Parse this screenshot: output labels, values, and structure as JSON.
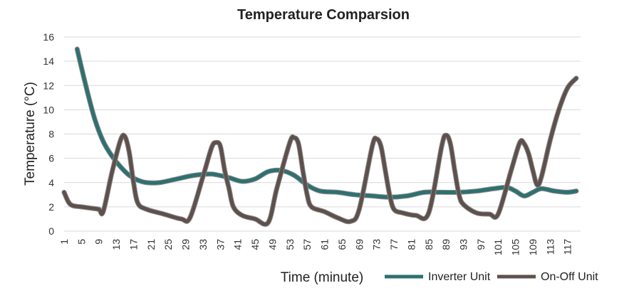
{
  "chart_data": {
    "type": "line",
    "title": "Temperature Comparsion",
    "xlabel": "Time (minute)",
    "ylabel": "Temperature (°C)",
    "ylim": [
      0,
      16
    ],
    "xlim": [
      1,
      120
    ],
    "yticks": [
      0,
      2,
      4,
      6,
      8,
      10,
      12,
      14,
      16
    ],
    "xticks": [
      1,
      5,
      9,
      13,
      17,
      21,
      25,
      29,
      33,
      37,
      41,
      45,
      49,
      53,
      57,
      61,
      65,
      69,
      73,
      77,
      81,
      85,
      89,
      93,
      97,
      101,
      105,
      109,
      113,
      117
    ],
    "grid": "horizontal",
    "legend": "bottom-right",
    "series": [
      {
        "name": "Inverter Unit",
        "color": "#2e7070",
        "points": [
          [
            4,
            15
          ],
          [
            6,
            12
          ],
          [
            8,
            9.3
          ],
          [
            10,
            7.4
          ],
          [
            12,
            6.2
          ],
          [
            14,
            5.3
          ],
          [
            16,
            4.6
          ],
          [
            18,
            4.2
          ],
          [
            20,
            4.0
          ],
          [
            23,
            4.0
          ],
          [
            27,
            4.3
          ],
          [
            31,
            4.6
          ],
          [
            35,
            4.7
          ],
          [
            39,
            4.4
          ],
          [
            42,
            4.1
          ],
          [
            45,
            4.3
          ],
          [
            48,
            4.9
          ],
          [
            51,
            5.0
          ],
          [
            54,
            4.6
          ],
          [
            57,
            3.8
          ],
          [
            60,
            3.3
          ],
          [
            64,
            3.2
          ],
          [
            68,
            3.0
          ],
          [
            72,
            2.9
          ],
          [
            76,
            2.8
          ],
          [
            80,
            2.9
          ],
          [
            84,
            3.2
          ],
          [
            88,
            3.2
          ],
          [
            92,
            3.2
          ],
          [
            96,
            3.3
          ],
          [
            100,
            3.5
          ],
          [
            103,
            3.6
          ],
          [
            105,
            3.3
          ],
          [
            107,
            2.9
          ],
          [
            109,
            3.2
          ],
          [
            111,
            3.5
          ],
          [
            114,
            3.3
          ],
          [
            117,
            3.2
          ],
          [
            119,
            3.3
          ]
        ]
      },
      {
        "name": "On-Off Unit",
        "color": "#5e504c",
        "points": [
          [
            1,
            3.2
          ],
          [
            2,
            2.4
          ],
          [
            3,
            2.1
          ],
          [
            5,
            2.0
          ],
          [
            7,
            1.9
          ],
          [
            9,
            1.8
          ],
          [
            10,
            1.6
          ],
          [
            12,
            4.8
          ],
          [
            14,
            7.5
          ],
          [
            15,
            7.8
          ],
          [
            16,
            6.5
          ],
          [
            17,
            4.0
          ],
          [
            18,
            2.3
          ],
          [
            20,
            1.8
          ],
          [
            24,
            1.4
          ],
          [
            28,
            1.0
          ],
          [
            30,
            1.1
          ],
          [
            33,
            4.5
          ],
          [
            35,
            6.9
          ],
          [
            36,
            7.3
          ],
          [
            37,
            7.0
          ],
          [
            38,
            5.0
          ],
          [
            39,
            3.5
          ],
          [
            40,
            2.0
          ],
          [
            42,
            1.3
          ],
          [
            45,
            1.0
          ],
          [
            48,
            0.7
          ],
          [
            50,
            3.5
          ],
          [
            53,
            7.3
          ],
          [
            54,
            7.7
          ],
          [
            55,
            7.2
          ],
          [
            56,
            5.0
          ],
          [
            57,
            3.0
          ],
          [
            58,
            2.0
          ],
          [
            61,
            1.6
          ],
          [
            64,
            1.1
          ],
          [
            67,
            0.8
          ],
          [
            69,
            1.8
          ],
          [
            72,
            7.0
          ],
          [
            73,
            7.6
          ],
          [
            74,
            7.0
          ],
          [
            75,
            5.0
          ],
          [
            76,
            3.0
          ],
          [
            77,
            1.8
          ],
          [
            79,
            1.5
          ],
          [
            82,
            1.3
          ],
          [
            85,
            1.5
          ],
          [
            88,
            7.0
          ],
          [
            89,
            7.9
          ],
          [
            90,
            7.2
          ],
          [
            91,
            5.0
          ],
          [
            92,
            3.0
          ],
          [
            93,
            2.2
          ],
          [
            96,
            1.5
          ],
          [
            99,
            1.4
          ],
          [
            101,
            1.4
          ],
          [
            104,
            5.0
          ],
          [
            106,
            7.3
          ],
          [
            107,
            7.2
          ],
          [
            108,
            6.4
          ],
          [
            109,
            5.0
          ],
          [
            110,
            3.8
          ],
          [
            111,
            4.5
          ],
          [
            113,
            7.5
          ],
          [
            115,
            10.0
          ],
          [
            117,
            11.8
          ],
          [
            119,
            12.6
          ]
        ]
      }
    ]
  }
}
